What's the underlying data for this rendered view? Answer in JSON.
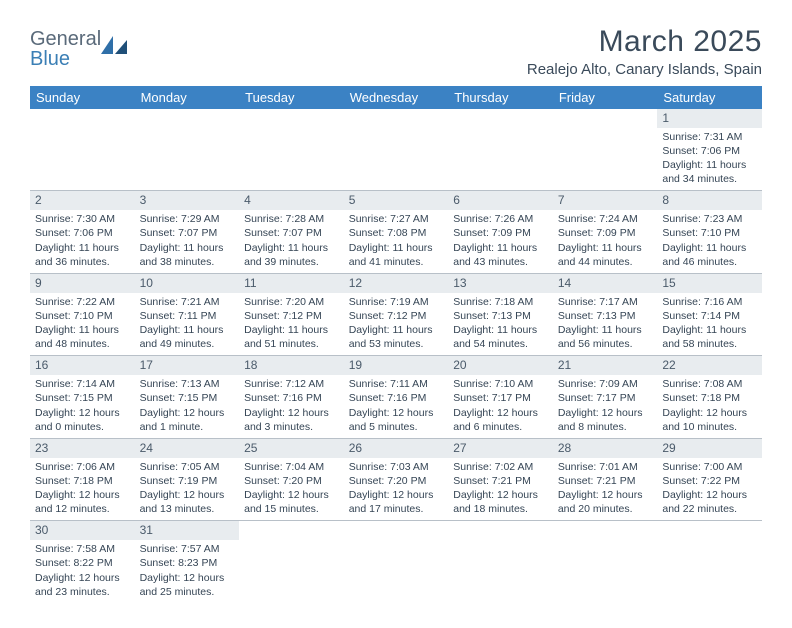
{
  "logo": {
    "word1": "General",
    "word2": "Blue"
  },
  "title": "March 2025",
  "subtitle": "Realejo Alto, Canary Islands, Spain",
  "colors": {
    "header_bg": "#3b82c4",
    "header_text": "#ffffff",
    "daynum_bg": "#e8ecef",
    "border": "#b8c0c8",
    "body_text": "#354555",
    "title_text": "#3a4a5a",
    "logo_gray": "#5a6a7a",
    "logo_blue": "#3b7fb5"
  },
  "fontsize": {
    "title": 30,
    "subtitle": 15,
    "dayhead": 13,
    "daynum": 12,
    "body": 10.5
  },
  "dayNames": [
    "Sunday",
    "Monday",
    "Tuesday",
    "Wednesday",
    "Thursday",
    "Friday",
    "Saturday"
  ],
  "weeks": [
    [
      null,
      null,
      null,
      null,
      null,
      null,
      {
        "n": "1",
        "sr": "7:31 AM",
        "ss": "7:06 PM",
        "dl": "11 hours and 34 minutes."
      }
    ],
    [
      {
        "n": "2",
        "sr": "7:30 AM",
        "ss": "7:06 PM",
        "dl": "11 hours and 36 minutes."
      },
      {
        "n": "3",
        "sr": "7:29 AM",
        "ss": "7:07 PM",
        "dl": "11 hours and 38 minutes."
      },
      {
        "n": "4",
        "sr": "7:28 AM",
        "ss": "7:07 PM",
        "dl": "11 hours and 39 minutes."
      },
      {
        "n": "5",
        "sr": "7:27 AM",
        "ss": "7:08 PM",
        "dl": "11 hours and 41 minutes."
      },
      {
        "n": "6",
        "sr": "7:26 AM",
        "ss": "7:09 PM",
        "dl": "11 hours and 43 minutes."
      },
      {
        "n": "7",
        "sr": "7:24 AM",
        "ss": "7:09 PM",
        "dl": "11 hours and 44 minutes."
      },
      {
        "n": "8",
        "sr": "7:23 AM",
        "ss": "7:10 PM",
        "dl": "11 hours and 46 minutes."
      }
    ],
    [
      {
        "n": "9",
        "sr": "7:22 AM",
        "ss": "7:10 PM",
        "dl": "11 hours and 48 minutes."
      },
      {
        "n": "10",
        "sr": "7:21 AM",
        "ss": "7:11 PM",
        "dl": "11 hours and 49 minutes."
      },
      {
        "n": "11",
        "sr": "7:20 AM",
        "ss": "7:12 PM",
        "dl": "11 hours and 51 minutes."
      },
      {
        "n": "12",
        "sr": "7:19 AM",
        "ss": "7:12 PM",
        "dl": "11 hours and 53 minutes."
      },
      {
        "n": "13",
        "sr": "7:18 AM",
        "ss": "7:13 PM",
        "dl": "11 hours and 54 minutes."
      },
      {
        "n": "14",
        "sr": "7:17 AM",
        "ss": "7:13 PM",
        "dl": "11 hours and 56 minutes."
      },
      {
        "n": "15",
        "sr": "7:16 AM",
        "ss": "7:14 PM",
        "dl": "11 hours and 58 minutes."
      }
    ],
    [
      {
        "n": "16",
        "sr": "7:14 AM",
        "ss": "7:15 PM",
        "dl": "12 hours and 0 minutes."
      },
      {
        "n": "17",
        "sr": "7:13 AM",
        "ss": "7:15 PM",
        "dl": "12 hours and 1 minute."
      },
      {
        "n": "18",
        "sr": "7:12 AM",
        "ss": "7:16 PM",
        "dl": "12 hours and 3 minutes."
      },
      {
        "n": "19",
        "sr": "7:11 AM",
        "ss": "7:16 PM",
        "dl": "12 hours and 5 minutes."
      },
      {
        "n": "20",
        "sr": "7:10 AM",
        "ss": "7:17 PM",
        "dl": "12 hours and 6 minutes."
      },
      {
        "n": "21",
        "sr": "7:09 AM",
        "ss": "7:17 PM",
        "dl": "12 hours and 8 minutes."
      },
      {
        "n": "22",
        "sr": "7:08 AM",
        "ss": "7:18 PM",
        "dl": "12 hours and 10 minutes."
      }
    ],
    [
      {
        "n": "23",
        "sr": "7:06 AM",
        "ss": "7:18 PM",
        "dl": "12 hours and 12 minutes."
      },
      {
        "n": "24",
        "sr": "7:05 AM",
        "ss": "7:19 PM",
        "dl": "12 hours and 13 minutes."
      },
      {
        "n": "25",
        "sr": "7:04 AM",
        "ss": "7:20 PM",
        "dl": "12 hours and 15 minutes."
      },
      {
        "n": "26",
        "sr": "7:03 AM",
        "ss": "7:20 PM",
        "dl": "12 hours and 17 minutes."
      },
      {
        "n": "27",
        "sr": "7:02 AM",
        "ss": "7:21 PM",
        "dl": "12 hours and 18 minutes."
      },
      {
        "n": "28",
        "sr": "7:01 AM",
        "ss": "7:21 PM",
        "dl": "12 hours and 20 minutes."
      },
      {
        "n": "29",
        "sr": "7:00 AM",
        "ss": "7:22 PM",
        "dl": "12 hours and 22 minutes."
      }
    ],
    [
      {
        "n": "30",
        "sr": "7:58 AM",
        "ss": "8:22 PM",
        "dl": "12 hours and 23 minutes."
      },
      {
        "n": "31",
        "sr": "7:57 AM",
        "ss": "8:23 PM",
        "dl": "12 hours and 25 minutes."
      },
      null,
      null,
      null,
      null,
      null
    ]
  ],
  "labels": {
    "sunrise": "Sunrise:",
    "sunset": "Sunset:",
    "daylight": "Daylight:"
  }
}
